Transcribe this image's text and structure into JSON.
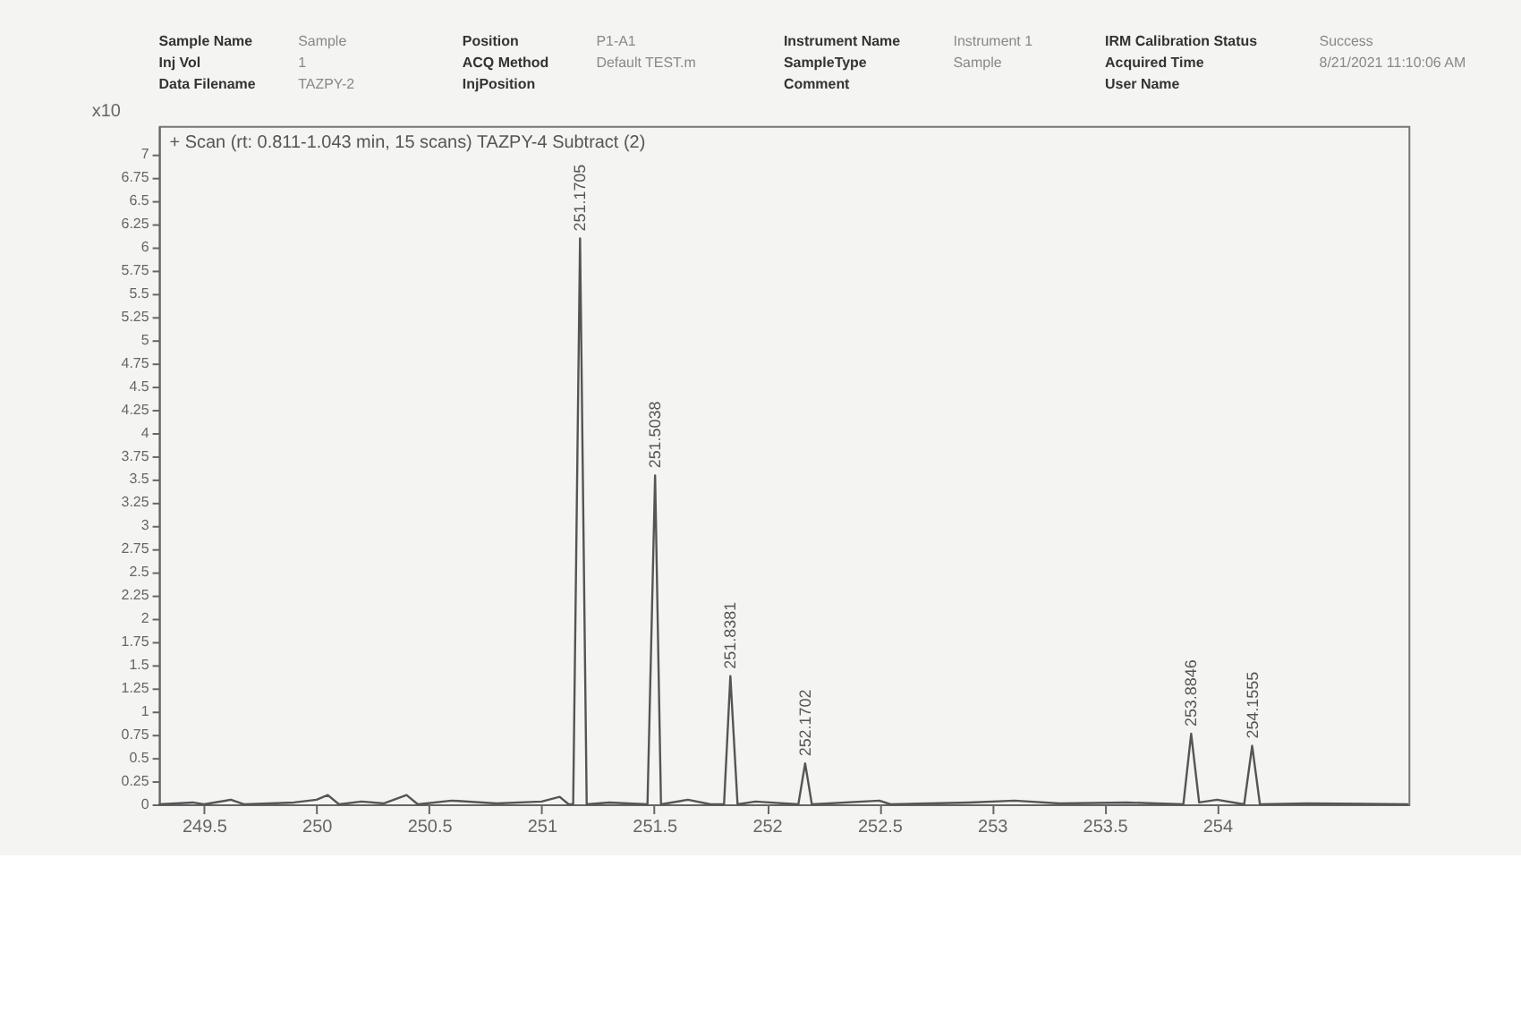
{
  "chart_data": {
    "type": "line",
    "title": "+ Scan (rt: 0.811-1.043 min, 15 scans) TAZPY-4 Subtract (2)",
    "ylabel": "x10",
    "xlim": [
      249.3,
      254.85
    ],
    "xticks": [
      249.5,
      250,
      250.5,
      251,
      251.5,
      252,
      252.5,
      253,
      253.5,
      254
    ],
    "ylim": [
      0,
      7.3
    ],
    "yticks": [
      0,
      0.25,
      0.5,
      0.75,
      1,
      1.25,
      1.5,
      1.75,
      2,
      2.25,
      2.5,
      2.75,
      3,
      3.25,
      3.5,
      3.75,
      4,
      4.25,
      4.5,
      4.75,
      5,
      5.25,
      5.5,
      5.75,
      6,
      6.25,
      6.5,
      6.75,
      7
    ],
    "grid": false,
    "marker": "none",
    "line_style": "solid",
    "series": [
      {
        "color": "#555555",
        "x": [
          249.3,
          249.45,
          249.5,
          249.62,
          249.68,
          249.9,
          250.0,
          250.05,
          250.1,
          250.2,
          250.3,
          250.4,
          250.45,
          250.6,
          250.8,
          251.0,
          251.08,
          251.12,
          251.14,
          251.1705,
          251.2,
          251.3,
          251.47,
          251.5038,
          251.53,
          251.65,
          251.75,
          251.81,
          251.8381,
          251.87,
          251.95,
          252.14,
          252.1702,
          252.2,
          252.5,
          252.55,
          252.9,
          253.1,
          253.3,
          253.6,
          253.85,
          253.8846,
          253.92,
          254.0,
          254.12,
          254.1555,
          254.19,
          254.4,
          254.85
        ],
        "values": [
          0,
          0.02,
          0,
          0.05,
          0,
          0.02,
          0.05,
          0.1,
          0,
          0.03,
          0.01,
          0.1,
          0,
          0.04,
          0.01,
          0.03,
          0.08,
          0,
          0,
          6.09,
          0,
          0.02,
          0,
          3.54,
          0,
          0.05,
          0,
          0,
          1.38,
          0,
          0.03,
          0,
          0.44,
          0,
          0.04,
          0,
          0.02,
          0.04,
          0.01,
          0.02,
          0,
          0.76,
          0.02,
          0.05,
          0,
          0.63,
          0,
          0.01,
          0
        ]
      }
    ],
    "annotations": [
      {
        "text": "251.1705",
        "x": 251.1705,
        "y": 6.09
      },
      {
        "text": "251.5038",
        "x": 251.5038,
        "y": 3.54
      },
      {
        "text": "251.8381",
        "x": 251.8381,
        "y": 1.38
      },
      {
        "text": "252.1702",
        "x": 252.1702,
        "y": 0.44
      },
      {
        "text": "253.8846",
        "x": 253.8846,
        "y": 0.76
      },
      {
        "text": "254.1555",
        "x": 254.1555,
        "y": 0.63
      },
      "Sample Name",
      "Inj Vol",
      "Data Filename",
      "Sample",
      "1",
      "TAZPY-2",
      "Position",
      "ACQ Method",
      "InjPosition",
      "P1-A1",
      "Default TEST.m",
      "Instrument Name",
      "SampleType",
      "Comment",
      "Instrument 1",
      "Sample",
      "IRM Calibration Status",
      "Acquired Time",
      "User Name",
      "Success",
      "8/21/2021 11:10:06 AM"
    ]
  }
}
